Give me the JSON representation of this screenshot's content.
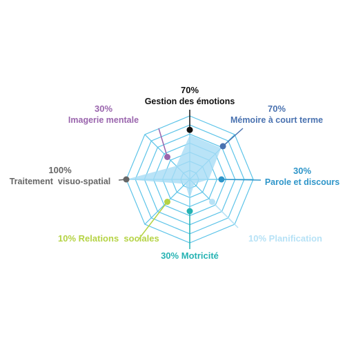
{
  "chart_data": {
    "type": "radar",
    "max": 100,
    "rings": 7,
    "fill_color": "#a8dcf5",
    "grid_color": "#5bc3e8",
    "axes": [
      {
        "name": "Gestion des émotions",
        "percent_label": "70%",
        "value": 70,
        "color": "#111111"
      },
      {
        "name": "Mémoire à court terme",
        "percent_label": "70%",
        "value": 70,
        "color": "#4a72b0"
      },
      {
        "name": "Parole et discours",
        "percent_label": "30%",
        "value": 30,
        "color": "#2e95c9"
      },
      {
        "name": "Planification",
        "percent_label": "10%",
        "value": 10,
        "color": "#b7e2f6"
      },
      {
        "name": "Motricité",
        "percent_label": "30%",
        "value": 30,
        "color": "#26b3b3"
      },
      {
        "name": "Relations  sociales",
        "percent_label": "10%",
        "value": 10,
        "color": "#b5d345"
      },
      {
        "name": "Traitement  visuo-spatial",
        "percent_label": "100%",
        "value": 100,
        "color": "#666666"
      },
      {
        "name": "Imagerie mentale",
        "percent_label": "30%",
        "value": 30,
        "color": "#9a65ad"
      }
    ]
  }
}
